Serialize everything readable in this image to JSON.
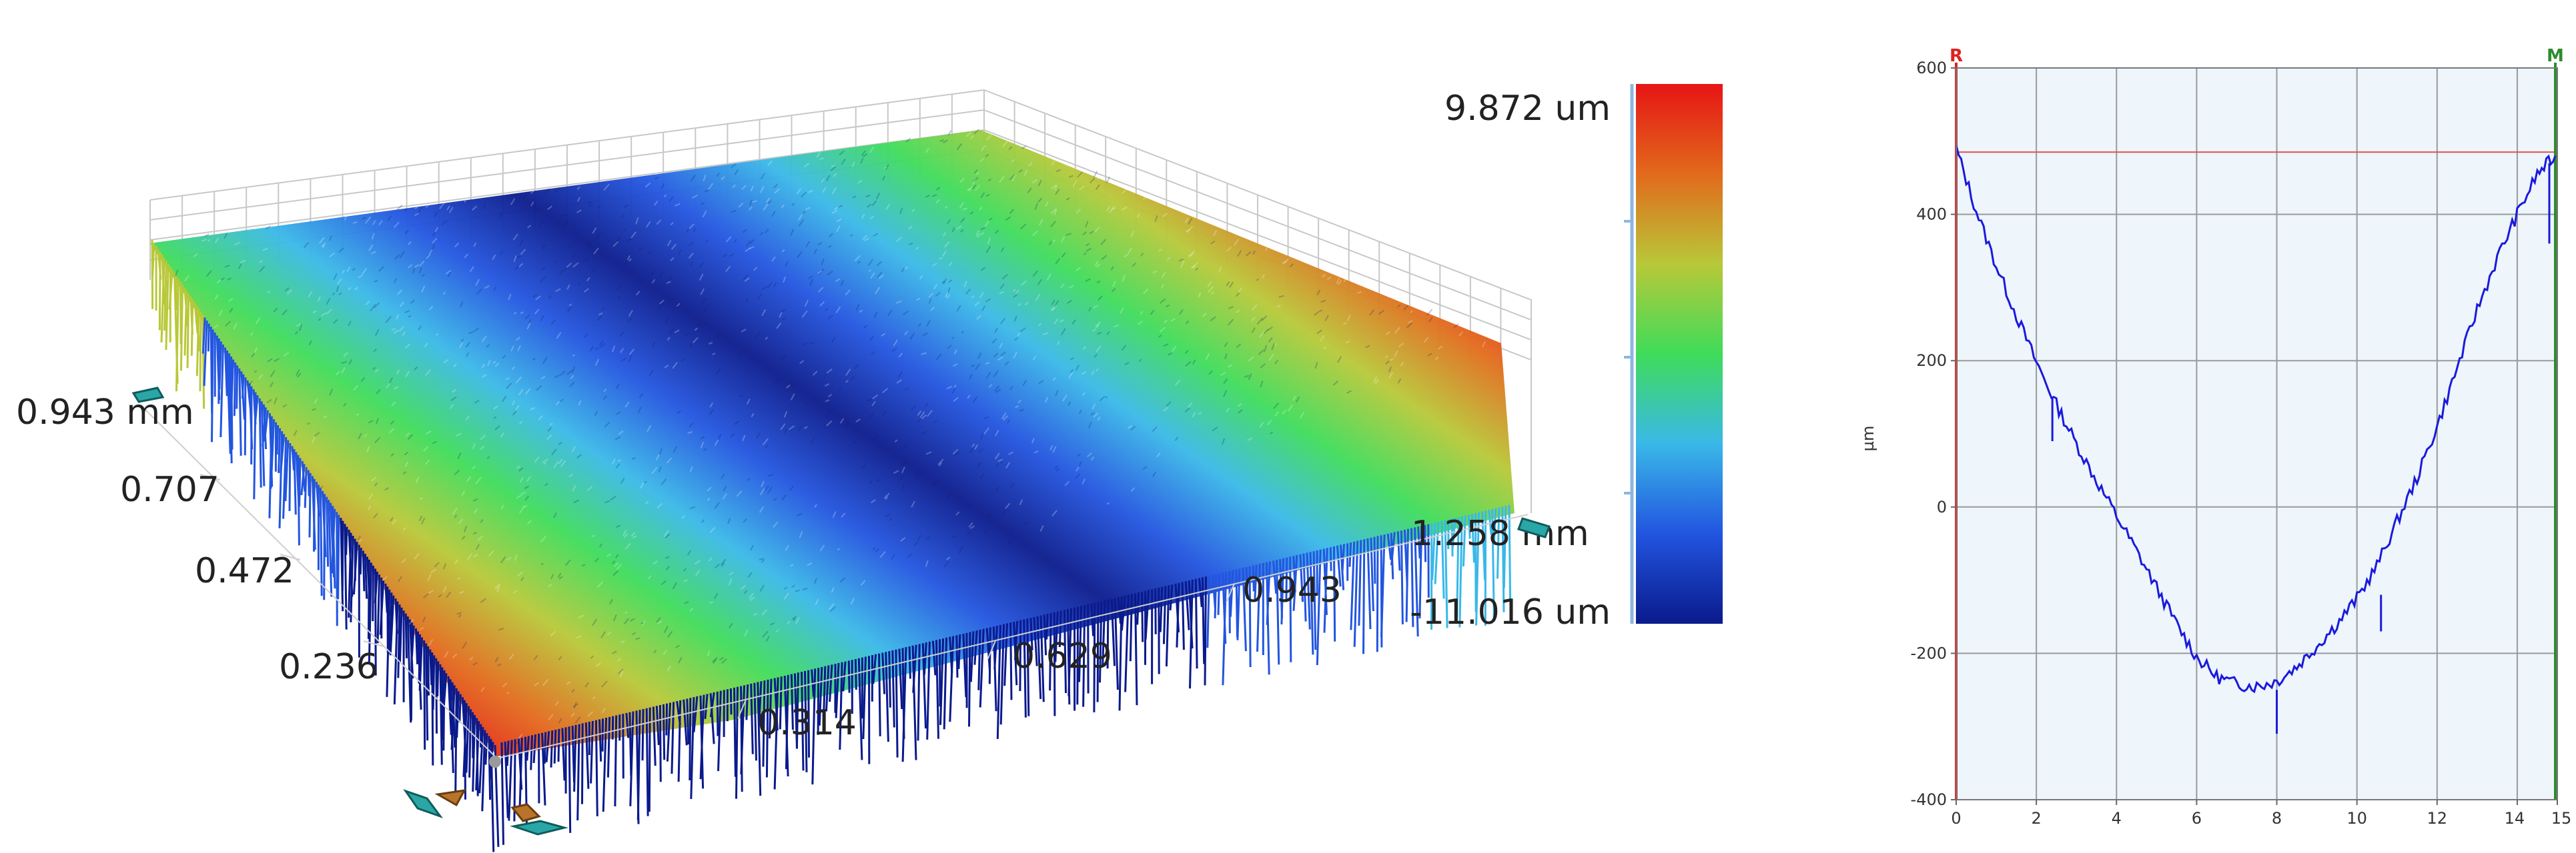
{
  "chart_data": [
    {
      "type": "surface3d",
      "colorbar": {
        "max_label": "9.872 um",
        "min_label": "-11.016 um",
        "max_value": 9.872,
        "min_value": -11.016,
        "unit": "um",
        "colors": [
          "#0a1a8c",
          "#2255e0",
          "#39b8e8",
          "#3fdc5a",
          "#b8c838",
          "#e26a1c",
          "#e61515"
        ]
      },
      "y_axis": {
        "ticks": [
          "0.943 mm",
          "0.707",
          "0.472",
          "0.236"
        ],
        "values": [
          0.943,
          0.707,
          0.472,
          0.236
        ]
      },
      "x_axis": {
        "ticks": [
          "0.314",
          "0.629",
          "0.943",
          "1.258 mm"
        ],
        "values": [
          0.314,
          0.629,
          0.943,
          1.258
        ]
      },
      "surface": "saddle-shaped rough surface: high (red) along far-right and near-left edges, low (blue) in a diagonal valley"
    },
    {
      "type": "line",
      "ylabel": "µm",
      "xlim": [
        0,
        15
      ],
      "ylim": [
        -400,
        600
      ],
      "x_ticks": [
        0,
        2,
        4,
        6,
        8,
        10,
        12,
        14,
        15
      ],
      "x_tick_labels": [
        "0",
        "2",
        "4",
        "6",
        "8",
        "10",
        "12",
        "14",
        "15"
      ],
      "y_ticks": [
        -400,
        -200,
        0,
        200,
        400,
        600
      ],
      "y_tick_labels": [
        "-400",
        "-200",
        "0",
        "200",
        "400",
        "600"
      ],
      "grid": true,
      "cursors": [
        {
          "label": "R",
          "x": 0,
          "color": "#e02020"
        },
        {
          "label": "M",
          "x": 14.95,
          "color": "#2e8b2e"
        }
      ],
      "reference_line": {
        "y": 485,
        "color": "#e05050"
      },
      "series": [
        {
          "color": "#1a1adc",
          "x": [
            0,
            0.5,
            1,
            1.5,
            2,
            2.5,
            3,
            3.5,
            4,
            4.5,
            5,
            5.5,
            6,
            6.5,
            7,
            7.5,
            8,
            8.5,
            9,
            9.5,
            10,
            10.5,
            11,
            11.5,
            12,
            12.5,
            13,
            13.5,
            14,
            14.5,
            14.95
          ],
          "y": [
            490,
            405,
            330,
            262,
            198,
            140,
            86,
            36,
            -12,
            -60,
            -110,
            -160,
            -205,
            -232,
            -242,
            -245,
            -238,
            -218,
            -190,
            -160,
            -125,
            -80,
            -20,
            40,
            110,
            190,
            270,
            340,
            400,
            455,
            480
          ]
        }
      ]
    }
  ]
}
